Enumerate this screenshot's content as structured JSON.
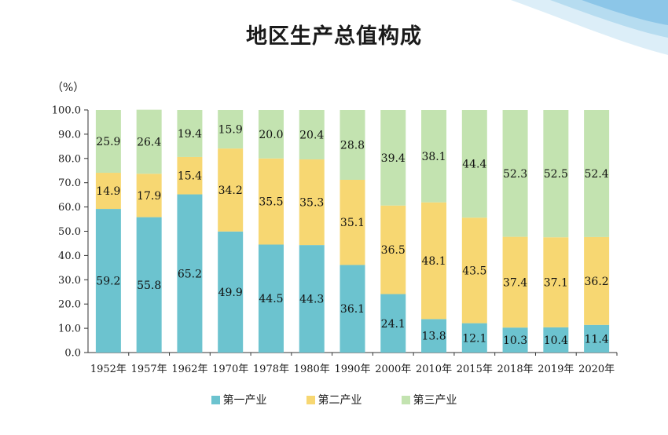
{
  "title": "地区生产总值构成",
  "unit_label": "（%）",
  "colors": {
    "primary": "#6cc3cf",
    "secondary": "#f7d772",
    "tertiary": "#c3e3b0"
  },
  "chart_data": {
    "type": "bar",
    "stacked": true,
    "title": "地区生产总值构成",
    "ylabel": "（%）",
    "xlabel": "",
    "ylim": [
      0,
      100
    ],
    "yticks": [
      "0.0",
      "10.0",
      "20.0",
      "30.0",
      "40.0",
      "50.0",
      "60.0",
      "70.0",
      "80.0",
      "90.0",
      "100.0"
    ],
    "categories": [
      "1952年",
      "1957年",
      "1962年",
      "1970年",
      "1978年",
      "1980年",
      "1990年",
      "2000年",
      "2010年",
      "2015年",
      "2018年",
      "2019年",
      "2020年"
    ],
    "series": [
      {
        "name": "第一产业",
        "color": "#6cc3cf",
        "values": [
          59.2,
          55.8,
          65.2,
          49.9,
          44.5,
          44.3,
          36.1,
          24.1,
          13.8,
          12.1,
          10.3,
          10.4,
          11.4
        ]
      },
      {
        "name": "第二产业",
        "color": "#f7d772",
        "values": [
          14.9,
          17.9,
          15.4,
          34.2,
          35.5,
          35.3,
          35.1,
          36.5,
          48.1,
          43.5,
          37.4,
          37.1,
          36.2
        ]
      },
      {
        "name": "第三产业",
        "color": "#c3e3b0",
        "values": [
          25.9,
          26.4,
          19.4,
          15.9,
          20.0,
          20.4,
          28.8,
          39.4,
          38.1,
          44.4,
          52.3,
          52.5,
          52.4
        ]
      }
    ],
    "legend_position": "bottom-center",
    "grid": false
  }
}
